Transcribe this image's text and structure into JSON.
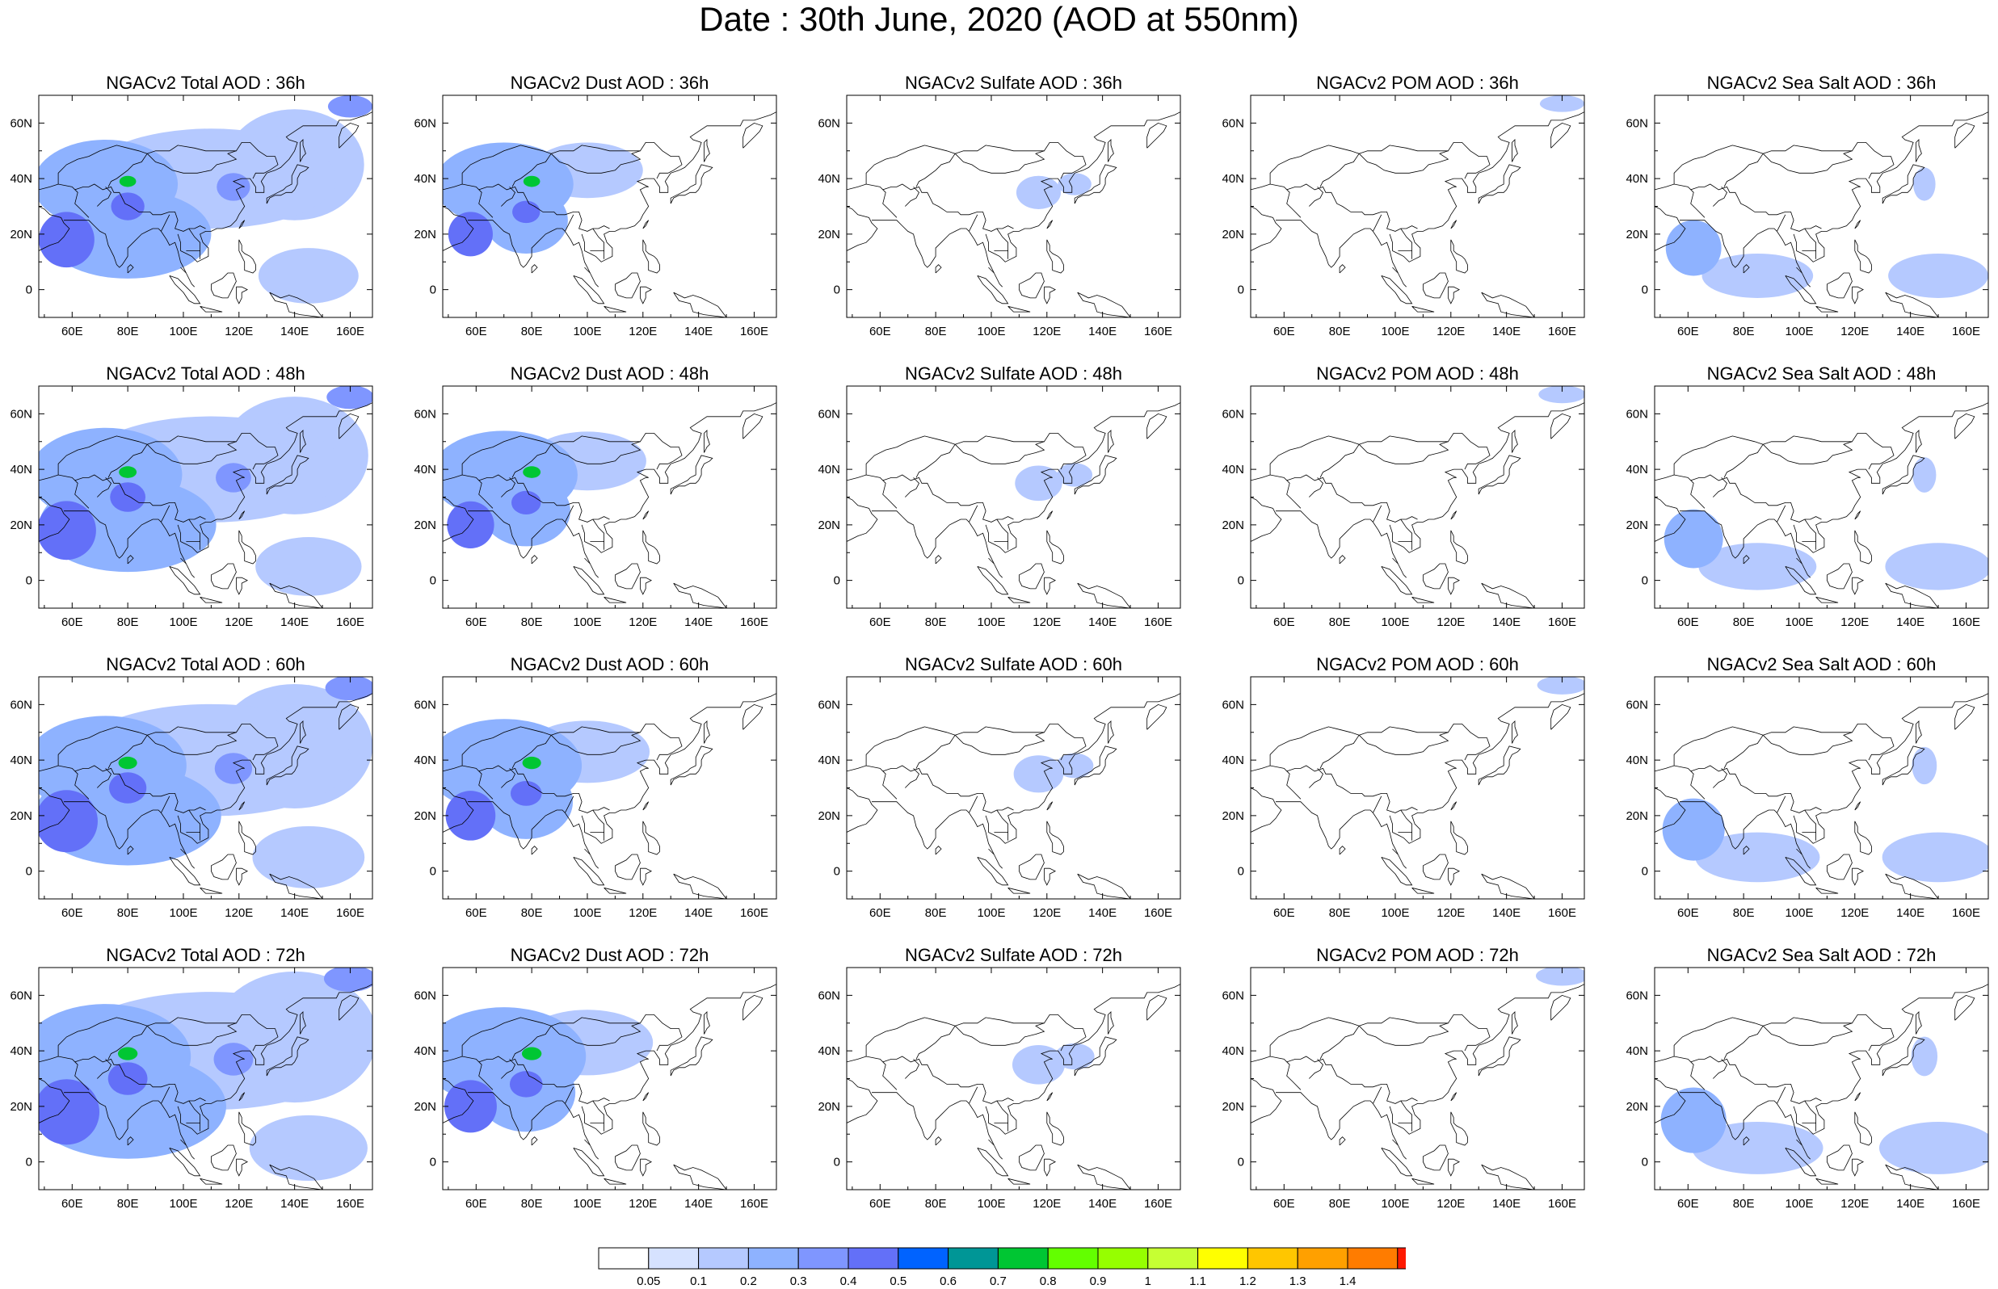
{
  "title": "Date : 30th June, 2020 (AOD at 550nm)",
  "species": [
    {
      "id": "total",
      "label": "Total AOD"
    },
    {
      "id": "dust",
      "label": "Dust AOD"
    },
    {
      "id": "sulfate",
      "label": "Sulfate AOD"
    },
    {
      "id": "pom",
      "label": "POM AOD"
    },
    {
      "id": "seasalt",
      "label": "Sea Salt AOD"
    }
  ],
  "forecast_hours": [
    "36h",
    "48h",
    "60h",
    "72h"
  ],
  "panel_titles": [
    [
      "NGACv2 Total AOD : 36h",
      "NGACv2 Dust AOD : 36h",
      "NGACv2 Sulfate AOD : 36h",
      "NGACv2 POM AOD : 36h",
      "NGACv2 Sea Salt AOD : 36h"
    ],
    [
      "NGACv2 Total AOD : 48h",
      "NGACv2 Dust AOD : 48h",
      "NGACv2 Sulfate AOD : 48h",
      "NGACv2 POM AOD : 48h",
      "NGACv2 Sea Salt AOD : 48h"
    ],
    [
      "NGACv2 Total AOD : 60h",
      "NGACv2 Dust AOD : 60h",
      "NGACv2 Sulfate AOD : 60h",
      "NGACv2 POM AOD : 60h",
      "NGACv2 Sea Salt AOD : 60h"
    ],
    [
      "NGACv2 Total AOD : 72h",
      "NGACv2 Dust AOD : 72h",
      "NGACv2 Sulfate AOD : 72h",
      "NGACv2 POM AOD : 72h",
      "NGACv2 Sea Salt  AOD : 72h"
    ]
  ],
  "map_extent": {
    "lon_range": [
      48,
      168
    ],
    "lat_range": [
      -10,
      70
    ]
  },
  "lon_ticks": [
    {
      "value": 60,
      "label": "60E"
    },
    {
      "value": 80,
      "label": "80E"
    },
    {
      "value": 100,
      "label": "100E"
    },
    {
      "value": 120,
      "label": "120E"
    },
    {
      "value": 140,
      "label": "140E"
    },
    {
      "value": 160,
      "label": "160E"
    }
  ],
  "lat_ticks": [
    {
      "value": 0,
      "label": "0"
    },
    {
      "value": 20,
      "label": "20N"
    },
    {
      "value": 40,
      "label": "40N"
    },
    {
      "value": 60,
      "label": "60N"
    }
  ],
  "colorbar": {
    "levels": [
      "0.05",
      "0.1",
      "0.2",
      "0.3",
      "0.4",
      "0.5",
      "0.6",
      "0.7",
      "0.8",
      "0.9",
      "1",
      "1.1",
      "1.2",
      "1.3",
      "1.4"
    ],
    "colors": [
      "#ffffff",
      "#d6e2ff",
      "#b5c9ff",
      "#8eb2ff",
      "#7f96ff",
      "#6370f8",
      "#0063ff",
      "#009696",
      "#00c633",
      "#63ff00",
      "#96ff00",
      "#c6ff33",
      "#ffff00",
      "#ffc600",
      "#ffa000",
      "#ff7c00",
      "#ff1900"
    ]
  },
  "aod_fields": {
    "total": [
      {
        "lon": 72,
        "lat": 38,
        "rx": 26,
        "ry": 16,
        "aod": 0.25
      },
      {
        "lon": 110,
        "lat": 40,
        "rx": 45,
        "ry": 18,
        "aod": 0.13
      },
      {
        "lon": 80,
        "lat": 20,
        "rx": 30,
        "ry": 16,
        "aod": 0.2
      },
      {
        "lon": 140,
        "lat": 45,
        "rx": 25,
        "ry": 20,
        "aod": 0.12
      },
      {
        "lon": 58,
        "lat": 18,
        "rx": 10,
        "ry": 10,
        "aod": 0.4
      },
      {
        "lon": 80,
        "lat": 30,
        "rx": 6,
        "ry": 5,
        "aod": 0.45
      },
      {
        "lon": 80,
        "lat": 39,
        "rx": 3,
        "ry": 2,
        "aod": 0.75
      },
      {
        "lon": 118,
        "lat": 37,
        "rx": 6,
        "ry": 5,
        "aod": 0.3
      },
      {
        "lon": 145,
        "lat": 5,
        "rx": 18,
        "ry": 10,
        "aod": 0.12
      },
      {
        "lon": 160,
        "lat": 66,
        "rx": 8,
        "ry": 4,
        "aod": 0.3
      }
    ],
    "dust": [
      {
        "lon": 70,
        "lat": 38,
        "rx": 25,
        "ry": 15,
        "aod": 0.22
      },
      {
        "lon": 78,
        "lat": 25,
        "rx": 15,
        "ry": 12,
        "aod": 0.2
      },
      {
        "lon": 100,
        "lat": 43,
        "rx": 20,
        "ry": 10,
        "aod": 0.12
      },
      {
        "lon": 58,
        "lat": 20,
        "rx": 8,
        "ry": 8,
        "aod": 0.4
      },
      {
        "lon": 80,
        "lat": 39,
        "rx": 3,
        "ry": 2,
        "aod": 0.75
      },
      {
        "lon": 78,
        "lat": 28,
        "rx": 5,
        "ry": 4,
        "aod": 0.4
      }
    ],
    "sulfate": [
      {
        "lon": 117,
        "lat": 35,
        "rx": 8,
        "ry": 6,
        "aod": 0.12
      },
      {
        "lon": 130,
        "lat": 38,
        "rx": 6,
        "ry": 4,
        "aod": 0.1
      }
    ],
    "pom": [
      {
        "lon": 160,
        "lat": 67,
        "rx": 8,
        "ry": 3,
        "aod": 0.15
      }
    ],
    "seasalt": [
      {
        "lon": 62,
        "lat": 15,
        "rx": 10,
        "ry": 10,
        "aod": 0.2
      },
      {
        "lon": 85,
        "lat": 5,
        "rx": 20,
        "ry": 8,
        "aod": 0.12
      },
      {
        "lon": 150,
        "lat": 5,
        "rx": 18,
        "ry": 8,
        "aod": 0.1
      },
      {
        "lon": 145,
        "lat": 38,
        "rx": 4,
        "ry": 6,
        "aod": 0.12
      }
    ]
  }
}
